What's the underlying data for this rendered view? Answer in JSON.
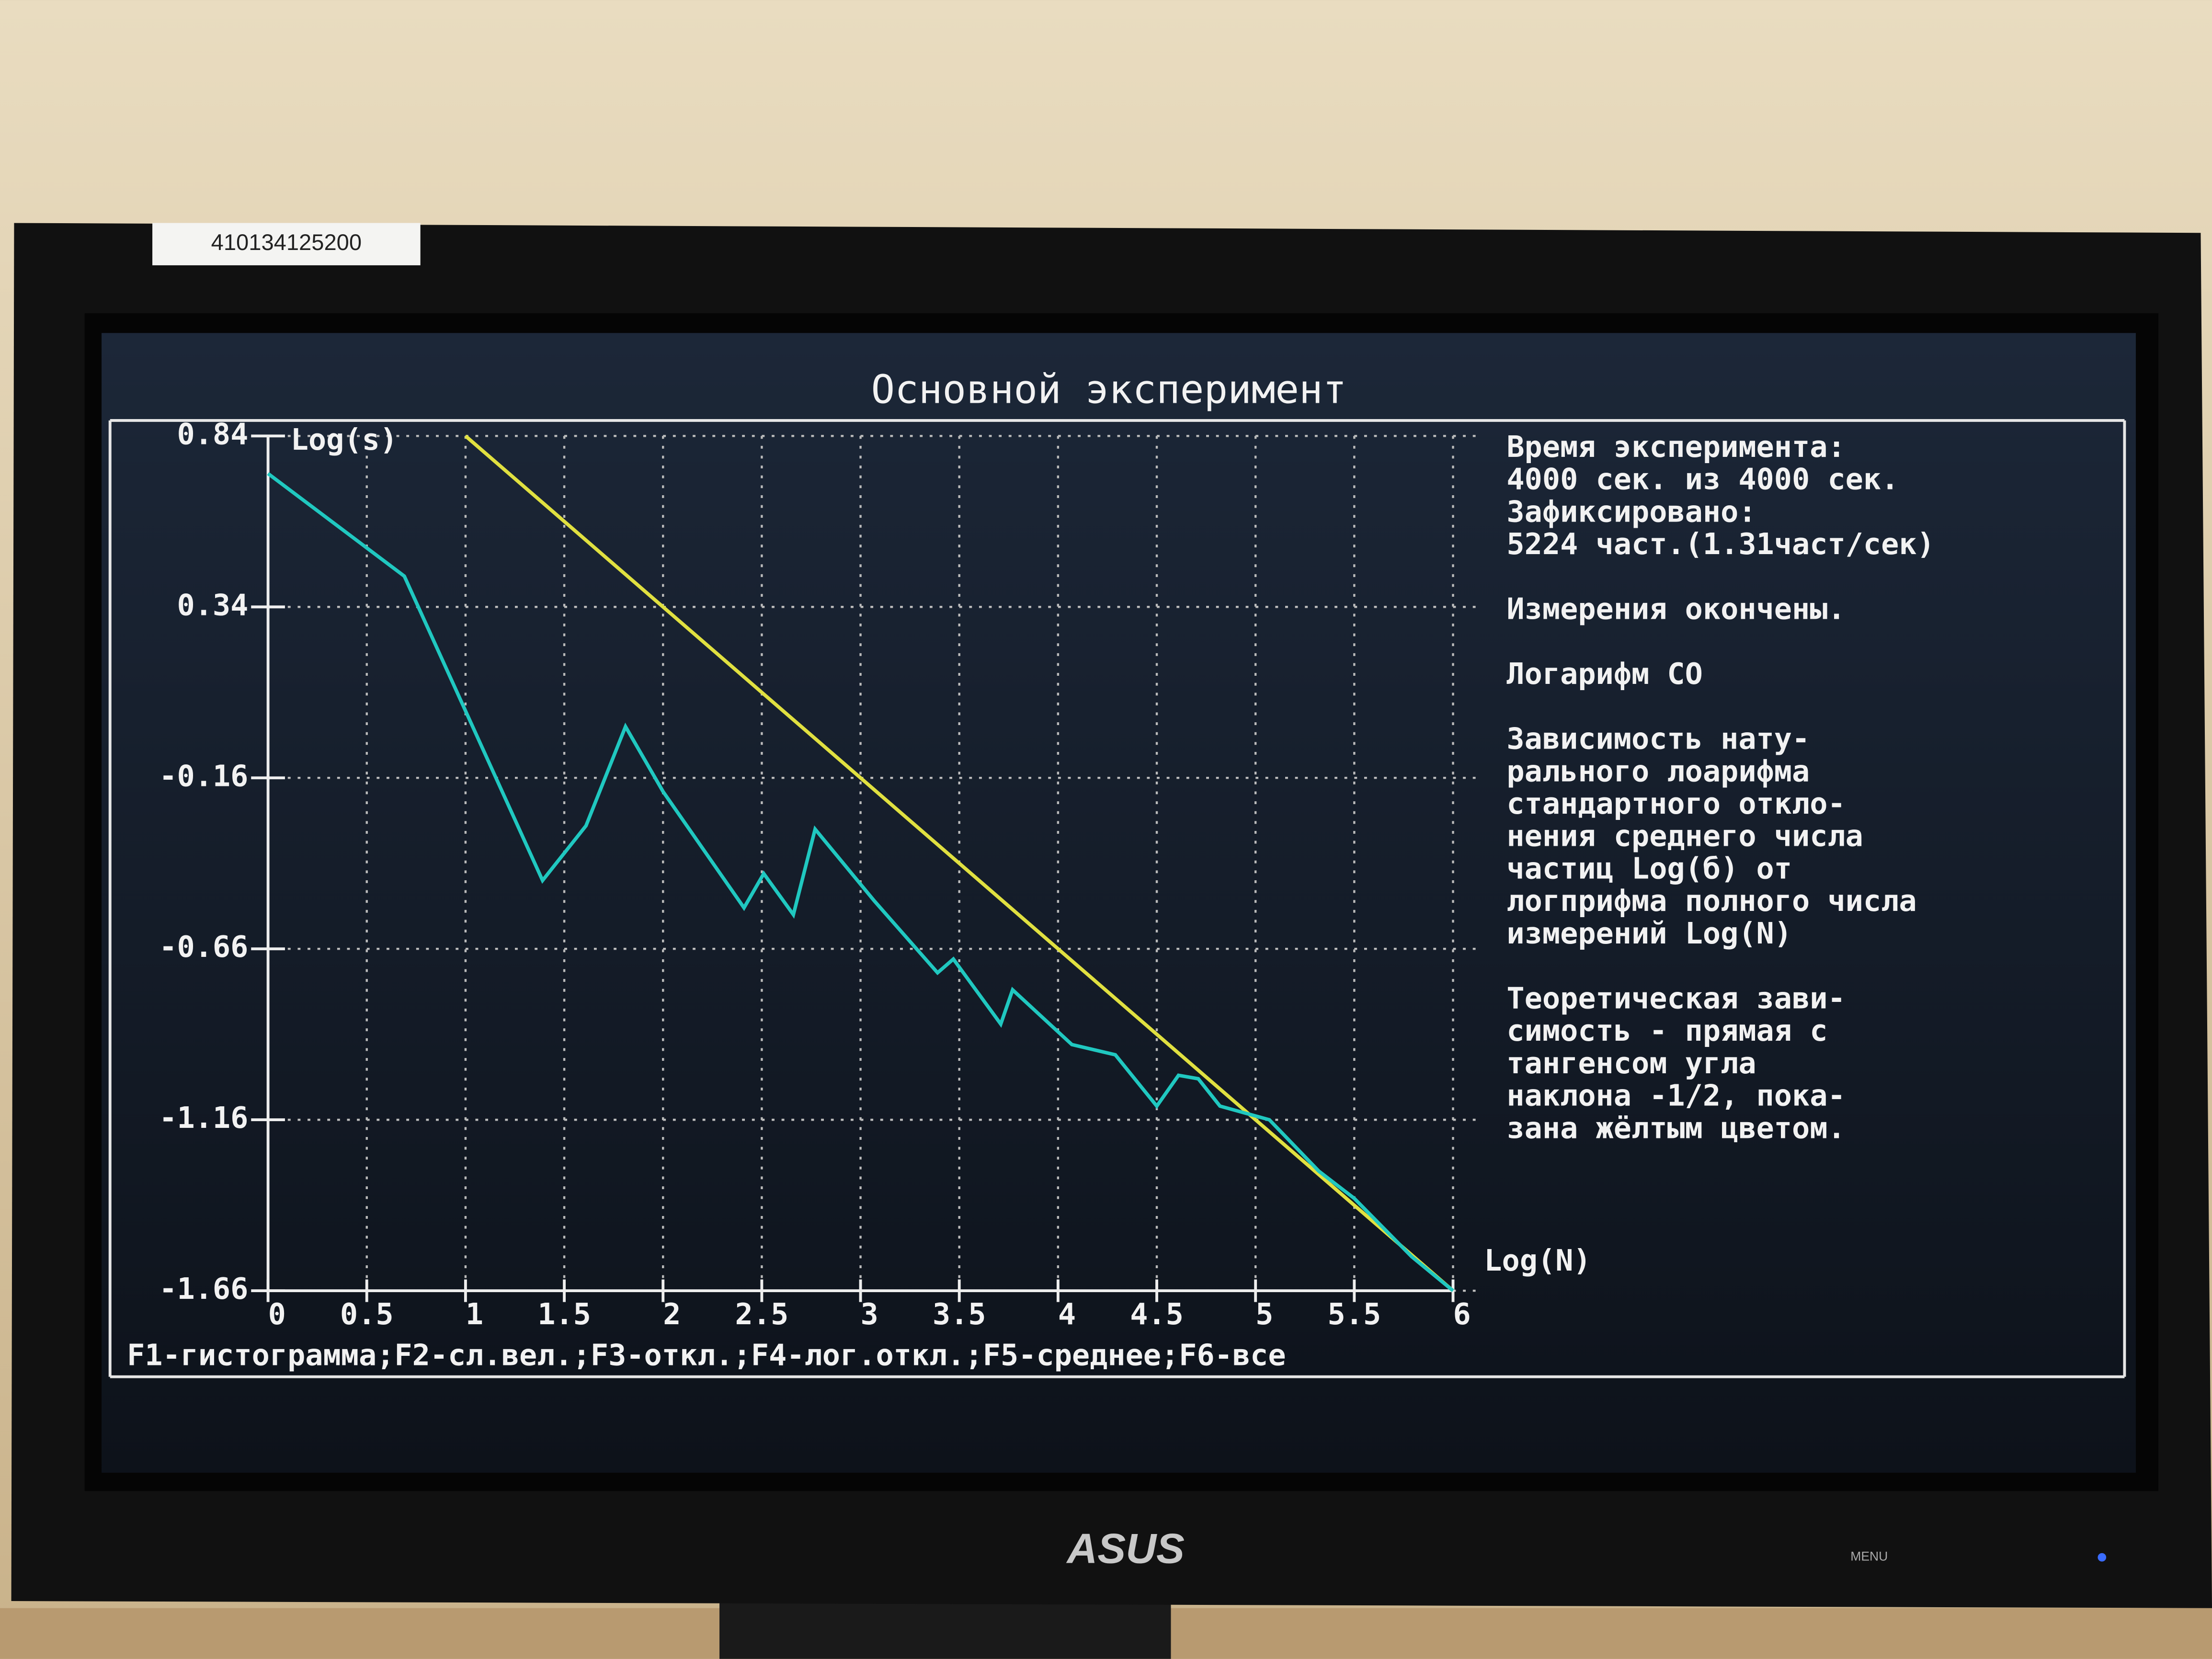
{
  "sticker": "410134125200",
  "screen": {
    "title": "Основной эксперимент",
    "info_blocks": [
      [
        "Время эксперимента:",
        "4000 сек. из 4000 сек.",
        "Зафиксировано:",
        "5224 част.(1.31част/сек)"
      ],
      [
        "Измерения окончены."
      ],
      [
        "Логарифм СО"
      ],
      [
        "Зависимость нату-",
        "рального лоарифма",
        "стандартного откло-",
        "нения среднего числа",
        "частиц Log(б) от",
        "логприфма полного числа",
        "измерений Log(N)"
      ],
      [
        "Теоретическая зави-",
        "симость - прямая с",
        "тангенсом угла",
        "наклона -1/2, пока-",
        "зана жёлтым цветом."
      ]
    ],
    "menu": "F1-гистограмма;F2-сл.вел.;F3-откл.;F4-лог.откл.;F5-среднее;F6-все"
  },
  "monitor": {
    "brand": "ASUS",
    "button_label": "MENU"
  },
  "chart_data": {
    "type": "line",
    "y_label": "Log(s)",
    "x_label": "Log(N)",
    "xlim": [
      0,
      6
    ],
    "xticks": [
      0,
      0.5,
      1,
      1.5,
      2,
      2.5,
      3,
      3.5,
      4,
      4.5,
      5,
      5.5,
      6
    ],
    "ylim": [
      -1.66,
      0.84
    ],
    "yticks": [
      0.84,
      0.34,
      -0.16,
      -0.66,
      -1.16,
      -1.66
    ],
    "grid": true,
    "series": [
      {
        "color": "#e0e040",
        "x": [
          1,
          6
        ],
        "values": [
          0.84,
          -1.66
        ]
      },
      {
        "color": "#20c8c0",
        "x": [
          0,
          0.69,
          1.39,
          1.61,
          1.81,
          2.0,
          2.41,
          2.51,
          2.66,
          2.77,
          3.07,
          3.39,
          3.47,
          3.71,
          3.77,
          4.07,
          4.29,
          4.5,
          4.61,
          4.71,
          4.82,
          5.07,
          5.32,
          5.5,
          5.79,
          6
        ],
        "values": [
          0.73,
          0.43,
          -0.46,
          -0.3,
          -0.01,
          -0.2,
          -0.54,
          -0.44,
          -0.56,
          -0.31,
          -0.52,
          -0.73,
          -0.69,
          -0.88,
          -0.78,
          -0.94,
          -0.97,
          -1.12,
          -1.03,
          -1.04,
          -1.12,
          -1.16,
          -1.31,
          -1.39,
          -1.56,
          -1.66
        ]
      }
    ]
  }
}
